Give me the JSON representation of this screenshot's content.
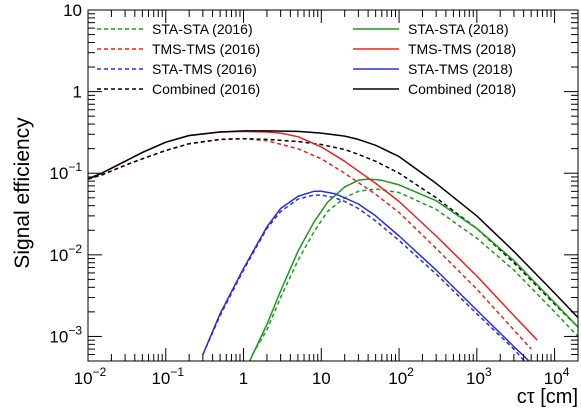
{
  "chart_data": {
    "type": "line",
    "title": "",
    "xlabel": "cτ [cm]",
    "ylabel": "Signal efficiency",
    "xscale": "log",
    "yscale": "log",
    "xlim": [
      0.01,
      20000
    ],
    "ylim": [
      0.0005,
      10
    ],
    "x_ticks": [
      {
        "v": 0.01,
        "b": "10",
        "e": "−2"
      },
      {
        "v": 0.1,
        "b": "10",
        "e": "−1"
      },
      {
        "v": 1,
        "b": "1",
        "e": ""
      },
      {
        "v": 10,
        "b": "10",
        "e": ""
      },
      {
        "v": 100,
        "b": "10",
        "e": "2"
      },
      {
        "v": 1000,
        "b": "10",
        "e": "3"
      },
      {
        "v": 10000,
        "b": "10",
        "e": "4"
      }
    ],
    "y_ticks": [
      {
        "v": 0.001,
        "b": "10",
        "e": "−3"
      },
      {
        "v": 0.01,
        "b": "10",
        "e": "−2"
      },
      {
        "v": 0.1,
        "b": "10",
        "e": "−1"
      },
      {
        "v": 1,
        "b": "1",
        "e": ""
      },
      {
        "v": 10,
        "b": "10",
        "e": ""
      }
    ],
    "legend_position": "top",
    "series": [
      {
        "name": "STA-STA (2016)",
        "color": "#1b9a1b",
        "dash": "dashed",
        "x": [
          1.3,
          2,
          3,
          5,
          8,
          12,
          20,
          30,
          50,
          100,
          300,
          1000,
          3000,
          10000,
          20000
        ],
        "y": [
          0.0006,
          0.0012,
          0.003,
          0.0085,
          0.019,
          0.034,
          0.05,
          0.06,
          0.064,
          0.058,
          0.036,
          0.016,
          0.0065,
          0.002,
          0.001
        ]
      },
      {
        "name": "TMS-TMS (2016)",
        "color": "#e8221f",
        "dash": "dashed",
        "x": [
          0.01,
          0.015,
          0.03,
          0.05,
          0.1,
          0.2,
          0.5,
          1,
          2,
          5,
          10,
          20,
          50,
          100,
          300,
          1000,
          3000,
          5000
        ],
        "y": [
          0.085,
          0.095,
          0.125,
          0.15,
          0.19,
          0.23,
          0.26,
          0.265,
          0.25,
          0.2,
          0.15,
          0.1,
          0.055,
          0.033,
          0.012,
          0.0038,
          0.0012,
          0.0007
        ]
      },
      {
        "name": "STA-TMS (2016)",
        "color": "#2a2fd9",
        "dash": "dashed",
        "x": [
          0.3,
          0.5,
          1,
          2,
          3,
          5,
          8,
          10,
          15,
          20,
          30,
          50,
          100,
          300,
          1000,
          3000,
          5000
        ],
        "y": [
          0.0006,
          0.0018,
          0.0065,
          0.021,
          0.034,
          0.048,
          0.054,
          0.054,
          0.05,
          0.045,
          0.037,
          0.026,
          0.015,
          0.0058,
          0.0019,
          0.0007,
          0.0004
        ]
      },
      {
        "name": "Combined (2016)",
        "color": "#000000",
        "dash": "dashed",
        "x": [
          0.01,
          0.015,
          0.03,
          0.05,
          0.1,
          0.2,
          0.5,
          1,
          2,
          5,
          10,
          20,
          30,
          50,
          100,
          300,
          1000,
          3000,
          10000,
          20000
        ],
        "y": [
          0.085,
          0.095,
          0.125,
          0.15,
          0.19,
          0.23,
          0.26,
          0.265,
          0.26,
          0.245,
          0.225,
          0.195,
          0.17,
          0.14,
          0.1,
          0.05,
          0.021,
          0.008,
          0.0025,
          0.0013
        ]
      },
      {
        "name": "STA-STA (2018)",
        "color": "#1b9a1b",
        "dash": "solid",
        "x": [
          1.2,
          2,
          3,
          5,
          8,
          12,
          20,
          30,
          40,
          60,
          100,
          300,
          1000,
          3000,
          10000,
          20000
        ],
        "y": [
          0.0005,
          0.0014,
          0.0036,
          0.011,
          0.025,
          0.044,
          0.068,
          0.082,
          0.085,
          0.082,
          0.072,
          0.046,
          0.021,
          0.0085,
          0.0026,
          0.0013
        ]
      },
      {
        "name": "TMS-TMS (2018)",
        "color": "#e8221f",
        "dash": "solid",
        "x": [
          0.01,
          0.015,
          0.03,
          0.05,
          0.1,
          0.2,
          0.5,
          1,
          2,
          3,
          5,
          10,
          20,
          50,
          100,
          300,
          1000,
          3000,
          6000
        ],
        "y": [
          0.085,
          0.1,
          0.14,
          0.18,
          0.24,
          0.29,
          0.32,
          0.325,
          0.32,
          0.31,
          0.28,
          0.21,
          0.14,
          0.075,
          0.045,
          0.017,
          0.0055,
          0.0018,
          0.0009
        ]
      },
      {
        "name": "STA-TMS (2018)",
        "color": "#2a2fd9",
        "dash": "solid",
        "x": [
          0.3,
          0.5,
          1,
          2,
          3,
          5,
          8,
          10,
          15,
          20,
          30,
          50,
          100,
          300,
          1000,
          3000,
          6000
        ],
        "y": [
          0.0006,
          0.0019,
          0.0068,
          0.022,
          0.037,
          0.052,
          0.06,
          0.06,
          0.056,
          0.05,
          0.042,
          0.03,
          0.017,
          0.0065,
          0.0021,
          0.00075,
          0.0004
        ]
      },
      {
        "name": "Combined (2018)",
        "color": "#000000",
        "dash": "solid",
        "x": [
          0.01,
          0.015,
          0.03,
          0.05,
          0.1,
          0.2,
          0.5,
          1,
          2,
          5,
          10,
          20,
          30,
          50,
          100,
          300,
          1000,
          3000,
          10000,
          20000
        ],
        "y": [
          0.085,
          0.1,
          0.14,
          0.18,
          0.24,
          0.29,
          0.32,
          0.33,
          0.33,
          0.325,
          0.31,
          0.285,
          0.26,
          0.22,
          0.16,
          0.075,
          0.03,
          0.011,
          0.0034,
          0.0017
        ]
      }
    ]
  }
}
